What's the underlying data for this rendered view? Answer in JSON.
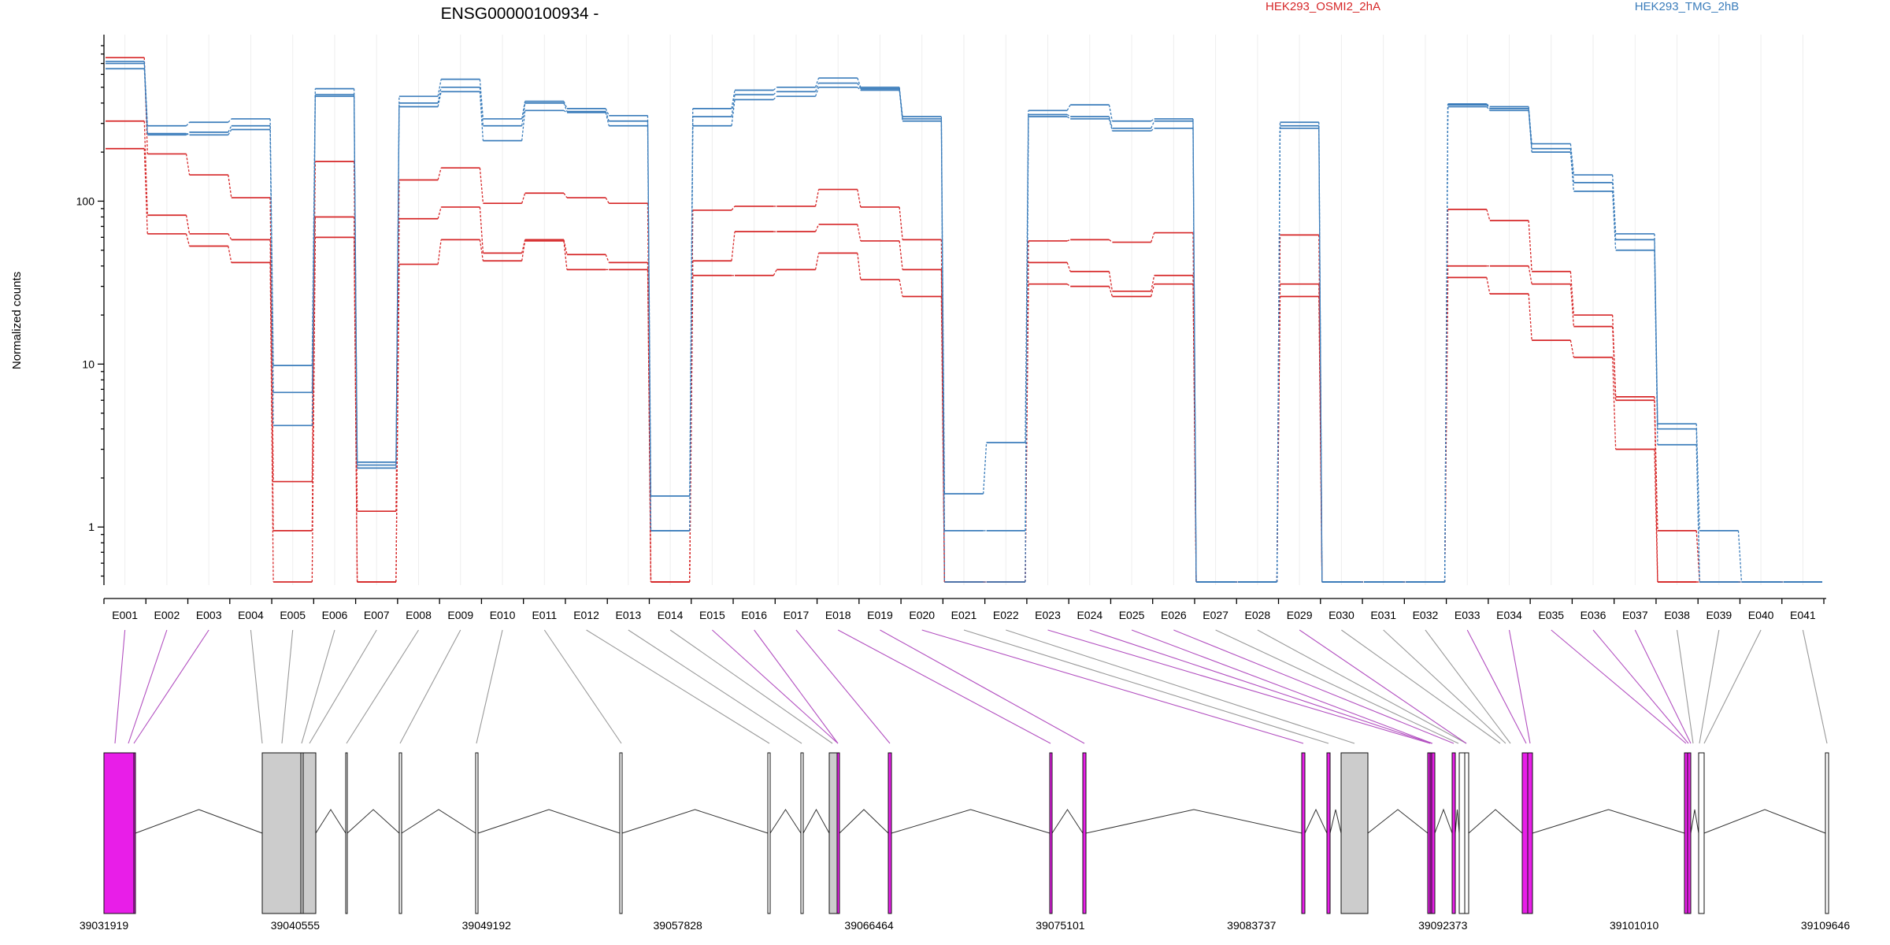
{
  "chart_data": {
    "type": "line",
    "title": "ENSG00000100934 -",
    "ylabel": "Normalized counts",
    "yscale": "log",
    "ylim": [
      0.45,
      900
    ],
    "y_ticks": [
      1,
      10,
      100
    ],
    "y_tick_labels": [
      "1",
      "10",
      "100"
    ],
    "legend": [
      {
        "name": "HEK293_OSMI2_2hA",
        "color": "#d62728"
      },
      {
        "name": "HEK293_TMG_2hB",
        "color": "#3b7dbb"
      }
    ],
    "categories": [
      "E001",
      "E002",
      "E003",
      "E004",
      "E005",
      "E006",
      "E007",
      "E008",
      "E009",
      "E010",
      "E011",
      "E012",
      "E013",
      "E014",
      "E015",
      "E016",
      "E017",
      "E018",
      "E019",
      "E020",
      "E021",
      "E022",
      "E023",
      "E024",
      "E025",
      "E026",
      "E027",
      "E028",
      "E029",
      "E030",
      "E031",
      "E032",
      "E033",
      "E034",
      "E035",
      "E036",
      "E037",
      "E038",
      "E039",
      "E040",
      "E041"
    ],
    "series": [
      {
        "group": 0,
        "values": [
          760,
          195,
          145,
          105,
          1.9,
          175,
          1.25,
          135,
          160,
          97,
          112,
          105,
          97,
          0.46,
          88,
          93,
          93,
          118,
          92,
          58,
          0.46,
          0.46,
          57,
          58,
          56,
          64,
          0.46,
          0.46,
          62,
          0.46,
          0.46,
          0.46,
          89,
          76,
          37,
          20,
          6.3,
          0.95,
          0.46,
          0.46,
          0.46
        ]
      },
      {
        "group": 0,
        "values": [
          310,
          82,
          63,
          58,
          0.95,
          80,
          0.46,
          78,
          92,
          48,
          58,
          47,
          42,
          0.46,
          43,
          65,
          65,
          72,
          57,
          38,
          0.46,
          0.46,
          42,
          37,
          28,
          35,
          0.46,
          0.46,
          31,
          0.46,
          0.46,
          0.46,
          40,
          40,
          31,
          17,
          6.0,
          0.46,
          0.46,
          0.46,
          0.46
        ]
      },
      {
        "group": 0,
        "values": [
          210,
          63,
          53,
          42,
          0.46,
          60,
          0.46,
          41,
          58,
          43,
          57,
          38,
          38,
          0.46,
          35,
          35,
          38,
          48,
          33,
          26,
          0.46,
          0.46,
          31,
          30,
          26,
          31,
          0.46,
          0.46,
          26,
          0.46,
          0.46,
          0.46,
          34,
          27,
          14,
          11,
          3.0,
          0.46,
          0.46,
          0.46,
          0.46
        ]
      },
      {
        "group": 1,
        "values": [
          720,
          290,
          305,
          320,
          9.8,
          490,
          2.5,
          440,
          560,
          320,
          410,
          370,
          335,
          1.55,
          370,
          480,
          500,
          570,
          500,
          330,
          1.6,
          3.3,
          360,
          390,
          310,
          320,
          0.46,
          0.46,
          305,
          0.46,
          0.46,
          0.46,
          395,
          380,
          225,
          145,
          63,
          4.3,
          0.95,
          0.46,
          0.46
        ]
      },
      {
        "group": 1,
        "values": [
          700,
          260,
          255,
          275,
          6.7,
          450,
          2.4,
          400,
          500,
          290,
          400,
          355,
          310,
          0.95,
          330,
          450,
          470,
          530,
          490,
          320,
          0.95,
          0.95,
          340,
          330,
          280,
          310,
          0.46,
          0.46,
          290,
          0.46,
          0.46,
          0.46,
          390,
          370,
          210,
          130,
          58,
          4.0,
          0.46,
          0.46,
          0.46
        ]
      },
      {
        "group": 1,
        "values": [
          650,
          255,
          265,
          290,
          4.2,
          440,
          2.3,
          380,
          470,
          235,
          360,
          350,
          290,
          0.95,
          290,
          420,
          440,
          500,
          480,
          310,
          0.46,
          0.46,
          330,
          320,
          270,
          280,
          0.46,
          0.46,
          280,
          0.46,
          0.46,
          0.46,
          380,
          360,
          200,
          115,
          50,
          3.2,
          0.46,
          0.46,
          0.46
        ]
      }
    ],
    "gene_model": {
      "coordinate_ticks": [
        "39031919",
        "39040555",
        "39049192",
        "39057828",
        "39066464",
        "39075101",
        "39083737",
        "39092373",
        "39101010",
        "39109646"
      ],
      "fill_colors": {
        "significant": "#e81ee8",
        "other": "#cccccc"
      }
    }
  }
}
